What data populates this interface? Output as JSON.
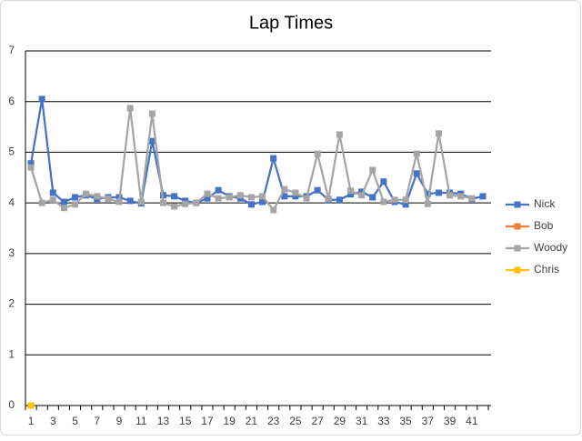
{
  "chart_data": {
    "type": "line",
    "title": "Lap Times",
    "categories": [
      1,
      null,
      3,
      null,
      5,
      null,
      7,
      null,
      9,
      null,
      11,
      null,
      13,
      null,
      15,
      null,
      17,
      null,
      19,
      null,
      21,
      null,
      23,
      null,
      25,
      null,
      27,
      null,
      29,
      null,
      31,
      null,
      33,
      null,
      35,
      null,
      37,
      null,
      39,
      null,
      41,
      null
    ],
    "series": [
      {
        "name": "Nick",
        "color": "#4472c4",
        "values": [
          4.78,
          6.05,
          4.2,
          4.02,
          4.11,
          4.15,
          4.08,
          4.11,
          4.11,
          4.04,
          3.99,
          5.22,
          4.15,
          4.13,
          4.04,
          4.0,
          4.09,
          4.25,
          4.13,
          4.09,
          3.97,
          4.02,
          4.88,
          4.13,
          4.13,
          4.13,
          4.25,
          4.06,
          4.06,
          4.17,
          4.22,
          4.11,
          4.42,
          4.02,
          3.97,
          4.58,
          4.18,
          4.2,
          4.2,
          4.18,
          4.08,
          4.13
        ]
      },
      {
        "name": "Bob",
        "color": "#ed7d31",
        "values": [
          null,
          null,
          null,
          null,
          null,
          null,
          null,
          null,
          null,
          null,
          null,
          null,
          null,
          null,
          null,
          null,
          null,
          null,
          null,
          null,
          null,
          null,
          null,
          null,
          null,
          null,
          null,
          null,
          null,
          null,
          null,
          null,
          null,
          null,
          null,
          null,
          null,
          null,
          null,
          null,
          null,
          null
        ]
      },
      {
        "name": "Woody",
        "color": "#a5a5a5",
        "values": [
          4.7,
          4.0,
          4.06,
          3.9,
          3.97,
          4.18,
          4.13,
          4.08,
          4.02,
          5.87,
          4.02,
          5.76,
          4.0,
          3.93,
          3.98,
          4.0,
          4.18,
          4.09,
          4.11,
          4.15,
          4.11,
          4.13,
          3.86,
          4.27,
          4.2,
          4.09,
          4.97,
          4.08,
          5.35,
          4.24,
          4.15,
          4.65,
          4.02,
          4.06,
          4.06,
          4.97,
          3.98,
          5.37,
          4.15,
          4.13,
          4.09,
          null
        ]
      },
      {
        "name": "Chris",
        "color": "#ffc000",
        "values": [
          0,
          null,
          null,
          null,
          null,
          null,
          null,
          null,
          null,
          null,
          null,
          null,
          null,
          null,
          null,
          null,
          null,
          null,
          null,
          null,
          null,
          null,
          null,
          null,
          null,
          null,
          null,
          null,
          null,
          null,
          null,
          null,
          null,
          null,
          null,
          null,
          null,
          null,
          null,
          null,
          null,
          null
        ]
      }
    ],
    "ylim": [
      0,
      7
    ],
    "yticks": [
      0,
      1,
      2,
      3,
      4,
      5,
      6,
      7
    ],
    "grid": true,
    "legend": "right"
  }
}
